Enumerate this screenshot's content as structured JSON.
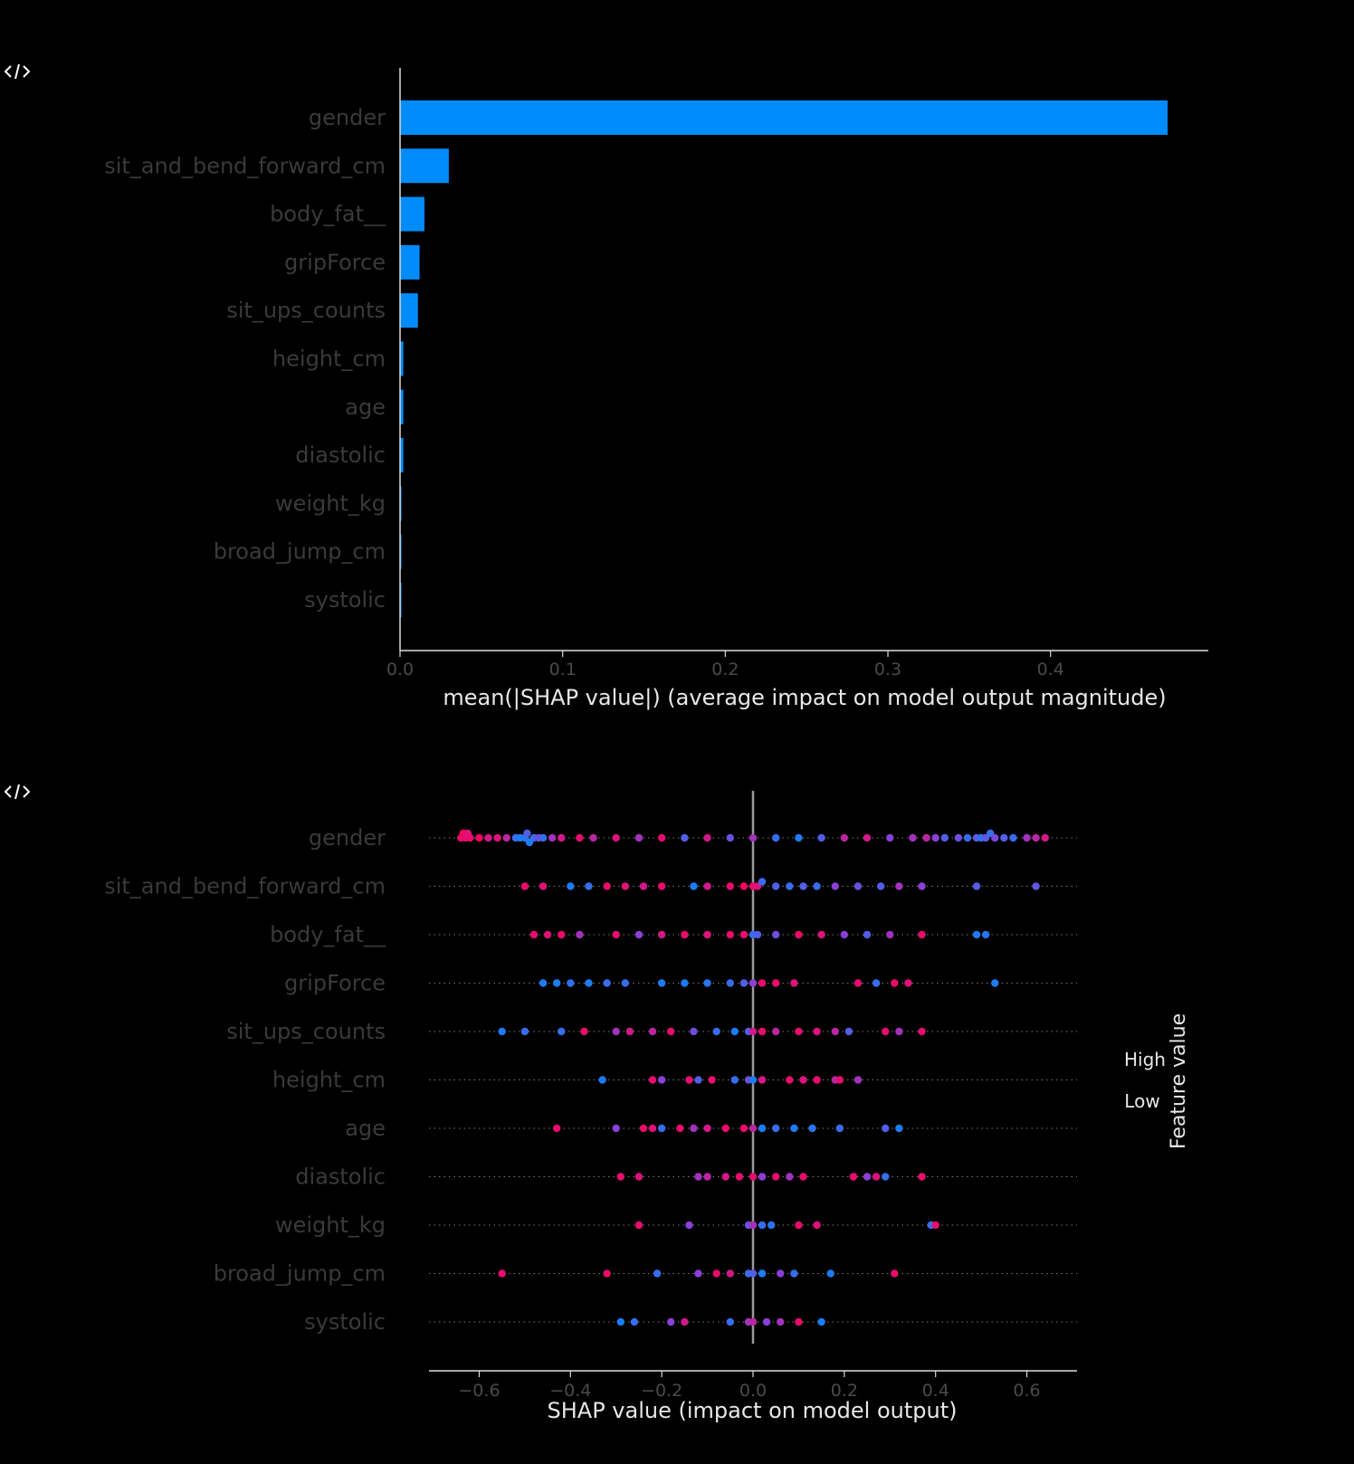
{
  "icons": {
    "code_toggle": "code-icon"
  },
  "colors": {
    "bar": "#008bfb",
    "high": "#ff0052",
    "low": "#008bfb",
    "mid": "#8a3fd6",
    "axis": "#dddddd",
    "feature_label": "#3a3a3a",
    "tick_label": "#4a4a4a",
    "title_text": "#e8e8e8",
    "grid_dots": "#777777",
    "zero_line": "#999999"
  },
  "chart_data": [
    {
      "type": "bar",
      "orientation": "horizontal",
      "categories": [
        "gender",
        "sit_and_bend_forward_cm",
        "body_fat__",
        "gripForce",
        "sit_ups_counts",
        "height_cm",
        "age",
        "diastolic",
        "weight_kg",
        "broad_jump_cm",
        "systolic"
      ],
      "values": [
        0.472,
        0.03,
        0.015,
        0.012,
        0.011,
        0.002,
        0.002,
        0.002,
        0.0008,
        0.0008,
        0.0005
      ],
      "xlabel": "mean(|SHAP value|) (average impact on model output magnitude)",
      "xlim": [
        0,
        0.497
      ],
      "xticks": [
        0.0,
        0.1,
        0.2,
        0.3,
        0.4
      ],
      "xtick_labels": [
        "0.0",
        "0.1",
        "0.2",
        "0.3",
        "0.4"
      ]
    },
    {
      "type": "scatter",
      "categories": [
        "gender",
        "sit_and_bend_forward_cm",
        "body_fat__",
        "gripForce",
        "sit_ups_counts",
        "height_cm",
        "age",
        "diastolic",
        "weight_kg",
        "broad_jump_cm",
        "systolic"
      ],
      "xlabel": "SHAP value (impact on model output)",
      "xlim": [
        -0.71,
        0.71
      ],
      "xticks": [
        -0.6,
        -0.4,
        -0.2,
        0.0,
        0.2,
        0.4,
        0.6
      ],
      "xtick_labels": [
        "−0.6",
        "−0.4",
        "−0.2",
        "0.0",
        "0.2",
        "0.4",
        "0.6"
      ],
      "colorbar": {
        "label": "Feature value",
        "high": "High",
        "low": "Low"
      },
      "series": [
        {
          "feature": "gender",
          "points": [
            [
              -0.64,
              0.9
            ],
            [
              -0.635,
              0.95
            ],
            [
              -0.63,
              0.9
            ],
            [
              -0.625,
              0.85
            ],
            [
              -0.62,
              0.9
            ],
            [
              -0.6,
              0.95
            ],
            [
              -0.58,
              0.8
            ],
            [
              -0.56,
              0.85
            ],
            [
              -0.54,
              0.7
            ],
            [
              -0.52,
              0.2
            ],
            [
              -0.51,
              0.1
            ],
            [
              -0.5,
              0.15
            ],
            [
              -0.495,
              0.3
            ],
            [
              -0.49,
              0.1
            ],
            [
              -0.48,
              0.2
            ],
            [
              -0.47,
              0.4
            ],
            [
              -0.46,
              0.2
            ],
            [
              -0.44,
              0.6
            ],
            [
              -0.42,
              0.8
            ],
            [
              -0.38,
              0.9
            ],
            [
              -0.35,
              0.7
            ],
            [
              -0.3,
              0.85
            ],
            [
              -0.25,
              0.6
            ],
            [
              -0.2,
              0.9
            ],
            [
              -0.15,
              0.3
            ],
            [
              -0.1,
              0.8
            ],
            [
              -0.05,
              0.4
            ],
            [
              0.0,
              0.6
            ],
            [
              0.05,
              0.2
            ],
            [
              0.1,
              0.1
            ],
            [
              0.15,
              0.3
            ],
            [
              0.2,
              0.7
            ],
            [
              0.25,
              0.8
            ],
            [
              0.3,
              0.5
            ],
            [
              0.35,
              0.6
            ],
            [
              0.38,
              0.7
            ],
            [
              0.4,
              0.5
            ],
            [
              0.42,
              0.3
            ],
            [
              0.45,
              0.4
            ],
            [
              0.47,
              0.2
            ],
            [
              0.49,
              0.3
            ],
            [
              0.5,
              0.15
            ],
            [
              0.51,
              0.35
            ],
            [
              0.52,
              0.2
            ],
            [
              0.53,
              0.45
            ],
            [
              0.55,
              0.3
            ],
            [
              0.57,
              0.2
            ],
            [
              0.6,
              0.6
            ],
            [
              0.62,
              0.7
            ],
            [
              0.64,
              0.8
            ]
          ]
        },
        {
          "feature": "sit_and_bend_forward_cm",
          "points": [
            [
              -0.5,
              0.9
            ],
            [
              -0.46,
              0.85
            ],
            [
              -0.4,
              0.1
            ],
            [
              -0.36,
              0.2
            ],
            [
              -0.32,
              0.9
            ],
            [
              -0.28,
              0.85
            ],
            [
              -0.24,
              0.8
            ],
            [
              -0.2,
              0.9
            ],
            [
              -0.13,
              0.1
            ],
            [
              -0.1,
              0.8
            ],
            [
              -0.05,
              0.9
            ],
            [
              -0.02,
              0.95
            ],
            [
              0.0,
              0.9
            ],
            [
              0.01,
              0.85
            ],
            [
              0.02,
              0.2
            ],
            [
              0.05,
              0.3
            ],
            [
              0.08,
              0.2
            ],
            [
              0.11,
              0.3
            ],
            [
              0.14,
              0.2
            ],
            [
              0.18,
              0.5
            ],
            [
              0.23,
              0.4
            ],
            [
              0.28,
              0.3
            ],
            [
              0.32,
              0.6
            ],
            [
              0.37,
              0.5
            ],
            [
              0.49,
              0.3
            ],
            [
              0.62,
              0.35
            ]
          ]
        },
        {
          "feature": "body_fat__",
          "points": [
            [
              -0.48,
              0.9
            ],
            [
              -0.45,
              0.85
            ],
            [
              -0.42,
              0.9
            ],
            [
              -0.38,
              0.6
            ],
            [
              -0.3,
              0.9
            ],
            [
              -0.25,
              0.5
            ],
            [
              -0.2,
              0.8
            ],
            [
              -0.15,
              0.9
            ],
            [
              -0.1,
              0.85
            ],
            [
              -0.05,
              0.9
            ],
            [
              -0.02,
              0.9
            ],
            [
              0.0,
              0.2
            ],
            [
              0.01,
              0.3
            ],
            [
              0.05,
              0.4
            ],
            [
              0.1,
              0.9
            ],
            [
              0.15,
              0.85
            ],
            [
              0.2,
              0.5
            ],
            [
              0.25,
              0.3
            ],
            [
              0.3,
              0.6
            ],
            [
              0.37,
              0.9
            ],
            [
              0.49,
              0.1
            ],
            [
              0.51,
              0.15
            ]
          ]
        },
        {
          "feature": "gripForce",
          "points": [
            [
              -0.46,
              0.1
            ],
            [
              -0.43,
              0.1
            ],
            [
              -0.4,
              0.15
            ],
            [
              -0.36,
              0.1
            ],
            [
              -0.32,
              0.2
            ],
            [
              -0.28,
              0.2
            ],
            [
              -0.2,
              0.1
            ],
            [
              -0.15,
              0.1
            ],
            [
              -0.1,
              0.15
            ],
            [
              -0.05,
              0.2
            ],
            [
              -0.02,
              0.3
            ],
            [
              0.0,
              0.5
            ],
            [
              0.02,
              0.9
            ],
            [
              0.05,
              0.9
            ],
            [
              0.09,
              0.85
            ],
            [
              0.23,
              0.9
            ],
            [
              0.27,
              0.2
            ],
            [
              0.31,
              0.9
            ],
            [
              0.34,
              0.85
            ],
            [
              0.53,
              0.1
            ]
          ]
        },
        {
          "feature": "sit_ups_counts",
          "points": [
            [
              -0.55,
              0.1
            ],
            [
              -0.5,
              0.2
            ],
            [
              -0.42,
              0.2
            ],
            [
              -0.37,
              0.9
            ],
            [
              -0.3,
              0.6
            ],
            [
              -0.27,
              0.8
            ],
            [
              -0.22,
              0.7
            ],
            [
              -0.18,
              0.9
            ],
            [
              -0.13,
              0.4
            ],
            [
              -0.08,
              0.2
            ],
            [
              -0.04,
              0.1
            ],
            [
              -0.01,
              0.3
            ],
            [
              0.0,
              0.8
            ],
            [
              0.02,
              0.9
            ],
            [
              0.05,
              0.7
            ],
            [
              0.1,
              0.9
            ],
            [
              0.14,
              0.85
            ],
            [
              0.18,
              0.7
            ],
            [
              0.21,
              0.3
            ],
            [
              0.29,
              0.9
            ],
            [
              0.32,
              0.6
            ],
            [
              0.37,
              0.9
            ]
          ]
        },
        {
          "feature": "height_cm",
          "points": [
            [
              -0.33,
              0.1
            ],
            [
              -0.22,
              0.9
            ],
            [
              -0.2,
              0.5
            ],
            [
              -0.14,
              0.9
            ],
            [
              -0.12,
              0.3
            ],
            [
              -0.09,
              0.9
            ],
            [
              -0.04,
              0.2
            ],
            [
              -0.01,
              0.4
            ],
            [
              0.0,
              0.1
            ],
            [
              0.02,
              0.8
            ],
            [
              0.08,
              0.9
            ],
            [
              0.11,
              0.85
            ],
            [
              0.14,
              0.9
            ],
            [
              0.18,
              0.7
            ],
            [
              0.19,
              0.9
            ],
            [
              0.23,
              0.6
            ]
          ]
        },
        {
          "feature": "age",
          "points": [
            [
              -0.43,
              0.9
            ],
            [
              -0.3,
              0.5
            ],
            [
              -0.24,
              0.9
            ],
            [
              -0.22,
              0.85
            ],
            [
              -0.2,
              0.2
            ],
            [
              -0.16,
              0.9
            ],
            [
              -0.13,
              0.6
            ],
            [
              -0.1,
              0.8
            ],
            [
              -0.06,
              0.9
            ],
            [
              -0.02,
              0.9
            ],
            [
              0.0,
              0.7
            ],
            [
              0.02,
              0.1
            ],
            [
              0.05,
              0.2
            ],
            [
              0.09,
              0.1
            ],
            [
              0.13,
              0.15
            ],
            [
              0.19,
              0.2
            ],
            [
              0.29,
              0.3
            ],
            [
              0.32,
              0.1
            ]
          ]
        },
        {
          "feature": "diastolic",
          "points": [
            [
              -0.29,
              0.9
            ],
            [
              -0.25,
              0.85
            ],
            [
              -0.12,
              0.6
            ],
            [
              -0.1,
              0.7
            ],
            [
              -0.06,
              0.8
            ],
            [
              -0.03,
              0.9
            ],
            [
              0.0,
              0.9
            ],
            [
              0.02,
              0.5
            ],
            [
              0.05,
              0.9
            ],
            [
              0.08,
              0.6
            ],
            [
              0.11,
              0.9
            ],
            [
              0.22,
              0.9
            ],
            [
              0.25,
              0.5
            ],
            [
              0.27,
              0.85
            ],
            [
              0.29,
              0.2
            ],
            [
              0.37,
              0.9
            ]
          ]
        },
        {
          "feature": "weight_kg",
          "points": [
            [
              -0.25,
              0.9
            ],
            [
              -0.14,
              0.5
            ],
            [
              -0.01,
              0.4
            ],
            [
              0.0,
              0.6
            ],
            [
              0.02,
              0.2
            ],
            [
              0.04,
              0.15
            ],
            [
              0.1,
              0.9
            ],
            [
              0.14,
              0.85
            ],
            [
              0.39,
              0.2
            ],
            [
              0.4,
              0.9
            ]
          ]
        },
        {
          "feature": "broad_jump_cm",
          "points": [
            [
              -0.55,
              0.9
            ],
            [
              -0.32,
              0.9
            ],
            [
              -0.21,
              0.2
            ],
            [
              -0.12,
              0.5
            ],
            [
              -0.08,
              0.9
            ],
            [
              -0.05,
              0.8
            ],
            [
              -0.01,
              0.2
            ],
            [
              0.0,
              0.3
            ],
            [
              0.02,
              0.1
            ],
            [
              0.06,
              0.5
            ],
            [
              0.09,
              0.2
            ],
            [
              0.17,
              0.1
            ],
            [
              0.31,
              0.9
            ]
          ]
        },
        {
          "feature": "systolic",
          "points": [
            [
              -0.29,
              0.1
            ],
            [
              -0.26,
              0.2
            ],
            [
              -0.18,
              0.5
            ],
            [
              -0.15,
              0.8
            ],
            [
              -0.05,
              0.2
            ],
            [
              -0.01,
              0.6
            ],
            [
              0.0,
              0.7
            ],
            [
              0.03,
              0.5
            ],
            [
              0.06,
              0.6
            ],
            [
              0.1,
              0.9
            ],
            [
              0.15,
              0.1
            ]
          ]
        }
      ]
    }
  ]
}
